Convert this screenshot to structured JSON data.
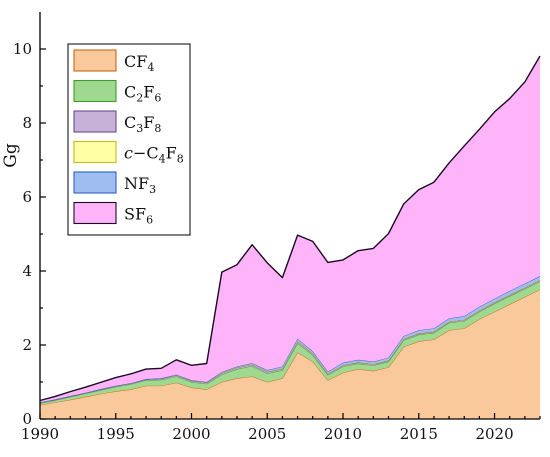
{
  "chart_data": {
    "type": "area",
    "stacked": true,
    "title": "",
    "xlabel": "",
    "ylabel": "Gg",
    "xlim": [
      1990,
      2023
    ],
    "ylim": [
      0,
      11
    ],
    "x_ticks": [
      1990,
      1995,
      2000,
      2005,
      2010,
      2015,
      2020
    ],
    "y_ticks": [
      0,
      2,
      4,
      6,
      8,
      10
    ],
    "grid": false,
    "legend_position": "top-left",
    "x": [
      1990,
      1991,
      1992,
      1993,
      1994,
      1995,
      1996,
      1997,
      1998,
      1999,
      2000,
      2001,
      2002,
      2003,
      2004,
      2005,
      2006,
      2007,
      2008,
      2009,
      2010,
      2011,
      2012,
      2013,
      2014,
      2015,
      2016,
      2017,
      2018,
      2019,
      2020,
      2021,
      2022,
      2023
    ],
    "series": [
      {
        "name": "CF4",
        "label_main": "CF",
        "label_sub": "4",
        "label_sub_pos": "end",
        "label_prefix": "",
        "fill": "#f9c89b",
        "stroke": "#c56a1c",
        "values": [
          0.38,
          0.45,
          0.52,
          0.6,
          0.68,
          0.75,
          0.8,
          0.9,
          0.9,
          0.98,
          0.85,
          0.8,
          1.0,
          1.1,
          1.15,
          1.0,
          1.1,
          1.8,
          1.55,
          1.05,
          1.25,
          1.35,
          1.3,
          1.4,
          1.95,
          2.1,
          2.15,
          2.4,
          2.45,
          2.7,
          2.9,
          3.1,
          3.3,
          3.5
        ]
      },
      {
        "name": "C2F6",
        "label_main": "C",
        "label_sub": "2",
        "label_mid": "F",
        "label_sub2": "6",
        "label_sub_pos": "two",
        "label_prefix": "",
        "fill": "#9fd98f",
        "stroke": "#3f9a2c",
        "values": [
          0.05,
          0.06,
          0.08,
          0.09,
          0.1,
          0.12,
          0.14,
          0.15,
          0.16,
          0.17,
          0.15,
          0.15,
          0.2,
          0.25,
          0.28,
          0.23,
          0.22,
          0.25,
          0.18,
          0.14,
          0.17,
          0.15,
          0.15,
          0.15,
          0.18,
          0.18,
          0.18,
          0.2,
          0.2,
          0.2,
          0.22,
          0.22,
          0.22,
          0.22
        ]
      },
      {
        "name": "C3F8",
        "label_main": "C",
        "label_sub": "3",
        "label_mid": "F",
        "label_sub2": "8",
        "label_sub_pos": "two",
        "label_prefix": "",
        "fill": "#c6b2d8",
        "stroke": "#6b4b91",
        "values": [
          0.01,
          0.01,
          0.01,
          0.01,
          0.02,
          0.02,
          0.02,
          0.02,
          0.03,
          0.03,
          0.03,
          0.03,
          0.04,
          0.04,
          0.04,
          0.04,
          0.04,
          0.05,
          0.04,
          0.03,
          0.03,
          0.03,
          0.03,
          0.03,
          0.03,
          0.03,
          0.03,
          0.03,
          0.03,
          0.03,
          0.03,
          0.03,
          0.03,
          0.03
        ]
      },
      {
        "name": "c-C4F8",
        "label_main": "C",
        "label_sub": "4",
        "label_mid": "F",
        "label_sub2": "8",
        "label_sub_pos": "two",
        "label_prefix": "c−",
        "fill": "#ffffa3",
        "stroke": "#c9b81f",
        "values": [
          0.01,
          0.01,
          0.01,
          0.01,
          0.01,
          0.01,
          0.01,
          0.01,
          0.01,
          0.01,
          0.01,
          0.01,
          0.01,
          0.01,
          0.01,
          0.01,
          0.01,
          0.01,
          0.01,
          0.01,
          0.01,
          0.01,
          0.01,
          0.01,
          0.01,
          0.01,
          0.01,
          0.01,
          0.01,
          0.01,
          0.01,
          0.01,
          0.01,
          0.01
        ]
      },
      {
        "name": "NF3",
        "label_main": "NF",
        "label_sub": "3",
        "label_sub_pos": "end",
        "label_prefix": "",
        "fill": "#9fbdf0",
        "stroke": "#2e5fd0",
        "values": [
          0.0,
          0.0,
          0.0,
          0.0,
          0.0,
          0.0,
          0.0,
          0.0,
          0.0,
          0.01,
          0.01,
          0.01,
          0.02,
          0.02,
          0.03,
          0.04,
          0.05,
          0.06,
          0.05,
          0.05,
          0.06,
          0.06,
          0.06,
          0.07,
          0.07,
          0.08,
          0.08,
          0.08,
          0.09,
          0.09,
          0.09,
          0.1,
          0.1,
          0.1
        ]
      },
      {
        "name": "SF6",
        "label_main": "SF",
        "label_sub": "6",
        "label_sub_pos": "end",
        "label_prefix": "",
        "fill": "#ffb3f8",
        "stroke": "#1a0a22",
        "values": [
          0.05,
          0.08,
          0.12,
          0.15,
          0.18,
          0.22,
          0.25,
          0.27,
          0.27,
          0.4,
          0.4,
          0.5,
          2.7,
          2.75,
          3.2,
          2.9,
          2.4,
          2.8,
          2.97,
          2.95,
          2.78,
          2.95,
          3.06,
          3.35,
          3.57,
          3.8,
          3.95,
          4.2,
          4.6,
          4.8,
          5.05,
          5.2,
          5.45,
          5.95
        ]
      }
    ]
  }
}
